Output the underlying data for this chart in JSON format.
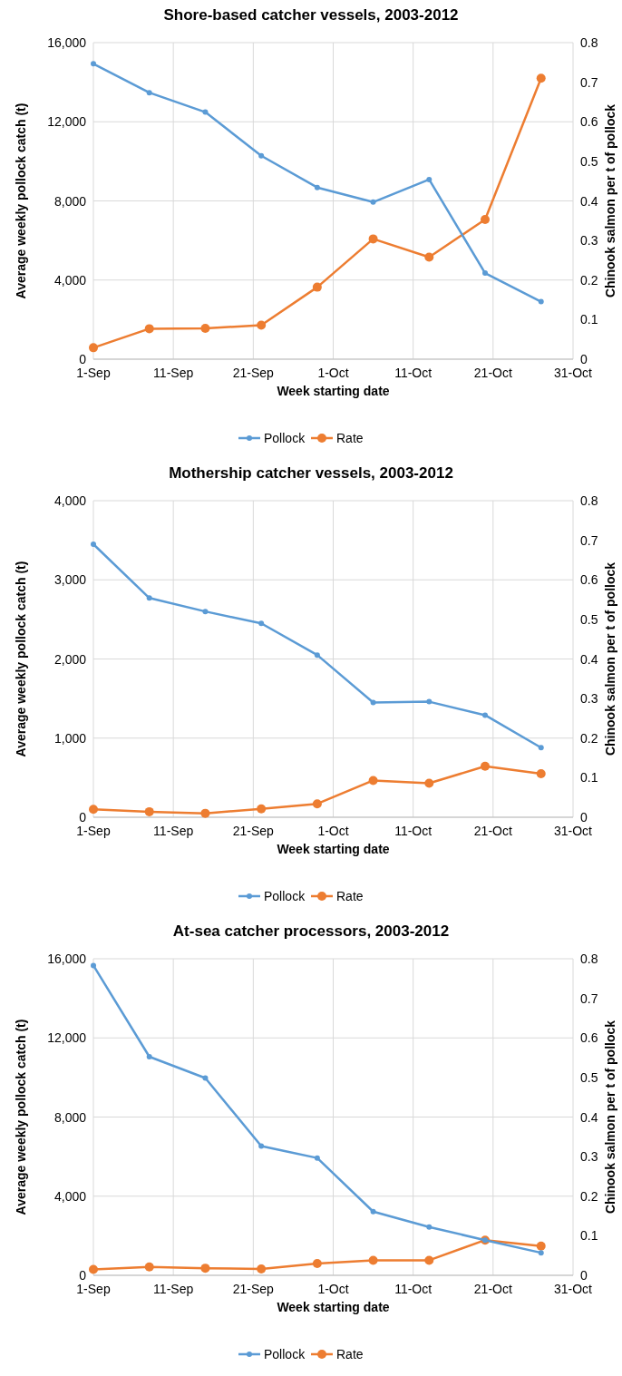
{
  "chart_data": [
    {
      "type": "line",
      "title": "Shore-based catcher vessels, 2003-2012",
      "xlabel": "Week starting date",
      "ylabel": "Average weekly pollock catch (t)",
      "y2label": "Chinook salmon per t of pollock",
      "x": [
        "--09-01",
        "--09-08",
        "--09-15",
        "--09-22",
        "--09-29",
        "--10-06",
        "--10-13",
        "--10-20",
        "--10-27"
      ],
      "series": [
        {
          "name": "Pollock",
          "color": "#5b9bd5",
          "values": [
            14930,
            13470,
            12490,
            10280,
            8680,
            7940,
            9080,
            4350,
            2910
          ]
        },
        {
          "name": "Rate",
          "color": "#ed7d31",
          "axis": "y2",
          "values": [
            0.029,
            0.077,
            0.078,
            0.086,
            0.182,
            0.304,
            0.258,
            0.353,
            0.71
          ]
        }
      ],
      "xlim": [
        "--09-01",
        "--10-31"
      ],
      "xticks": [
        {
          "value": "--09-01",
          "label": "1-Sep"
        },
        {
          "value": "--09-11",
          "label": "11-Sep"
        },
        {
          "value": "--09-21",
          "label": "21-Sep"
        },
        {
          "value": "--10-01",
          "label": "1-Oct"
        },
        {
          "value": "--10-11",
          "label": "11-Oct"
        },
        {
          "value": "--10-21",
          "label": "21-Oct"
        },
        {
          "value": "--10-31",
          "label": "31-Oct"
        }
      ],
      "ylim": [
        0,
        16000
      ],
      "yticks": [
        {
          "value": 0,
          "label": "0"
        },
        {
          "value": 4000,
          "label": "4,000"
        },
        {
          "value": 8000,
          "label": "8,000"
        },
        {
          "value": 12000,
          "label": "12,000"
        },
        {
          "value": 16000,
          "label": "16,000"
        }
      ],
      "y2lim": [
        0,
        0.8
      ],
      "y2ticks": [
        0,
        0.1,
        0.2,
        0.3,
        0.4,
        0.5,
        0.6,
        0.7,
        0.8
      ],
      "grid": true,
      "legend": "bottom",
      "marker": "circle",
      "line_style": "solid"
    },
    {
      "type": "line",
      "title": "Mothership catcher vessels, 2003-2012",
      "xlabel": "Week starting date",
      "ylabel": "Average weekly pollock catch (t)",
      "y2label": "Chinook salmon per t of pollock",
      "x": [
        "--09-01",
        "--09-08",
        "--09-15",
        "--09-22",
        "--09-29",
        "--10-06",
        "--10-13",
        "--10-20",
        "--10-27"
      ],
      "series": [
        {
          "name": "Pollock",
          "color": "#5b9bd5",
          "values": [
            3450,
            2770,
            2600,
            2450,
            2050,
            1450,
            1460,
            1290,
            880
          ]
        },
        {
          "name": "Rate",
          "color": "#ed7d31",
          "axis": "y2",
          "values": [
            0.02,
            0.014,
            0.01,
            0.021,
            0.034,
            0.093,
            0.086,
            0.129,
            0.11
          ]
        }
      ],
      "xlim": [
        "--09-01",
        "--10-31"
      ],
      "xticks": [
        {
          "value": "--09-01",
          "label": "1-Sep"
        },
        {
          "value": "--09-11",
          "label": "11-Sep"
        },
        {
          "value": "--09-21",
          "label": "21-Sep"
        },
        {
          "value": "--10-01",
          "label": "1-Oct"
        },
        {
          "value": "--10-11",
          "label": "11-Oct"
        },
        {
          "value": "--10-21",
          "label": "21-Oct"
        },
        {
          "value": "--10-31",
          "label": "31-Oct"
        }
      ],
      "ylim": [
        0,
        4000
      ],
      "yticks": [
        {
          "value": 0,
          "label": "0"
        },
        {
          "value": 1000,
          "label": "1,000"
        },
        {
          "value": 2000,
          "label": "2,000"
        },
        {
          "value": 3000,
          "label": "3,000"
        },
        {
          "value": 4000,
          "label": "4,000"
        }
      ],
      "y2lim": [
        0,
        0.8
      ],
      "y2ticks": [
        0,
        0.1,
        0.2,
        0.3,
        0.4,
        0.5,
        0.6,
        0.7,
        0.8
      ],
      "grid": true,
      "legend": "bottom",
      "marker": "circle",
      "line_style": "solid"
    },
    {
      "type": "line",
      "title": "At-sea catcher processors, 2003-2012",
      "xlabel": "Week starting date",
      "ylabel": "Average weekly pollock catch (t)",
      "y2label": "Chinook salmon per t of pollock",
      "x": [
        "--09-01",
        "--09-08",
        "--09-15",
        "--09-22",
        "--09-29",
        "--10-06",
        "--10-13",
        "--10-20",
        "--10-27"
      ],
      "series": [
        {
          "name": "Pollock",
          "color": "#5b9bd5",
          "values": [
            15660,
            11050,
            9970,
            6530,
            5930,
            3220,
            2440,
            1780,
            1140
          ]
        },
        {
          "name": "Rate",
          "color": "#ed7d31",
          "axis": "y2",
          "values": [
            0.015,
            0.021,
            0.018,
            0.016,
            0.03,
            0.038,
            0.038,
            0.089,
            0.074
          ]
        }
      ],
      "xlim": [
        "--09-01",
        "--10-31"
      ],
      "xticks": [
        {
          "value": "--09-01",
          "label": "1-Sep"
        },
        {
          "value": "--09-11",
          "label": "11-Sep"
        },
        {
          "value": "--09-21",
          "label": "21-Sep"
        },
        {
          "value": "--10-01",
          "label": "1-Oct"
        },
        {
          "value": "--10-11",
          "label": "11-Oct"
        },
        {
          "value": "--10-21",
          "label": "21-Oct"
        },
        {
          "value": "--10-31",
          "label": "31-Oct"
        }
      ],
      "ylim": [
        0,
        16000
      ],
      "yticks": [
        {
          "value": 0,
          "label": "0"
        },
        {
          "value": 4000,
          "label": "4,000"
        },
        {
          "value": 8000,
          "label": "8,000"
        },
        {
          "value": 12000,
          "label": "12,000"
        },
        {
          "value": 16000,
          "label": "16,000"
        }
      ],
      "y2lim": [
        0,
        0.8
      ],
      "y2ticks": [
        0,
        0.1,
        0.2,
        0.3,
        0.4,
        0.5,
        0.6,
        0.7,
        0.8
      ],
      "grid": true,
      "legend": "bottom",
      "marker": "circle",
      "line_style": "solid"
    }
  ]
}
